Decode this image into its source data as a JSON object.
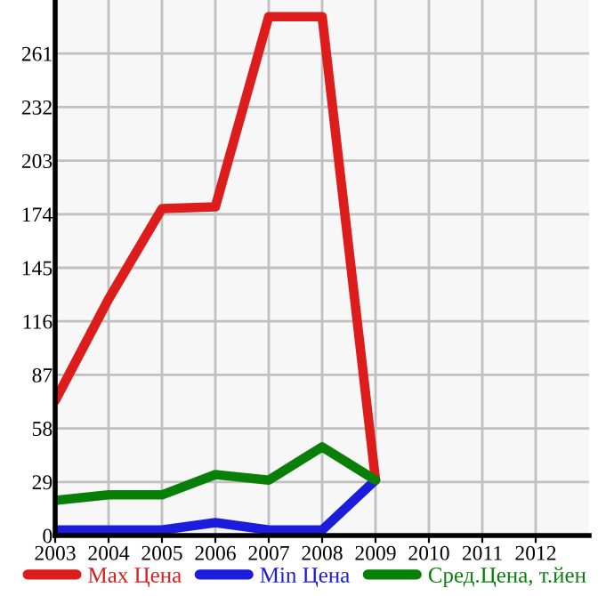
{
  "chart_data": {
    "type": "line",
    "x": [
      2003,
      2004,
      2005,
      2006,
      2007,
      2008,
      2009
    ],
    "series": [
      {
        "name": "Max Цена",
        "color": "#dd1c1c",
        "values": [
          73,
          128,
          177,
          178,
          281,
          281,
          30
        ]
      },
      {
        "name": "Min Цена",
        "color": "#1c1cdd",
        "values": [
          3,
          3,
          3,
          7,
          3,
          3,
          30
        ]
      },
      {
        "name": "Сред.Цена, т.йен",
        "color": "#088008",
        "values": [
          19,
          22,
          22,
          33,
          30,
          48,
          30
        ]
      }
    ],
    "xlim": [
      2003,
      2013
    ],
    "xticks": [
      2003,
      2004,
      2005,
      2006,
      2007,
      2008,
      2009,
      2010,
      2011,
      2012
    ],
    "ylim": [
      0,
      290
    ],
    "yticks": [
      0,
      29,
      58,
      87,
      116,
      145,
      174,
      203,
      232,
      261
    ],
    "grid": true,
    "legend": "bottom",
    "marker": "none",
    "line_style": "solid"
  }
}
